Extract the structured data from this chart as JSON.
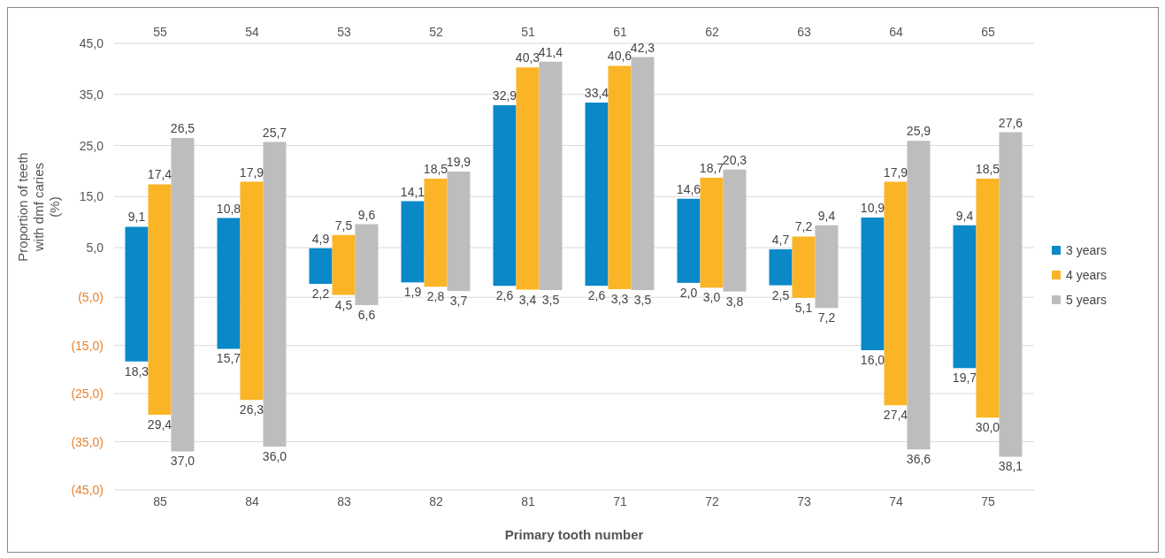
{
  "chart_data": [
    {
      "type": "bar",
      "ylabel": "Proportion of teeth\nwith dmf caries\n(%)",
      "categories": [
        "55",
        "54",
        "53",
        "52",
        "51",
        "61",
        "62",
        "63",
        "64",
        "65"
      ],
      "ylim": [
        0,
        45
      ],
      "yticks": [
        {
          "value": 5,
          "label": "5,0"
        },
        {
          "value": 15,
          "label": "15,0"
        },
        {
          "value": 25,
          "label": "25,0"
        },
        {
          "value": 35,
          "label": "35,0"
        },
        {
          "value": 45,
          "label": "45,0"
        }
      ],
      "grid": "y",
      "legend": "bottom right",
      "series": [
        {
          "name": "3 years",
          "color": "#0a88c8",
          "values": [
            9.1,
            10.8,
            4.9,
            14.1,
            32.9,
            33.4,
            14.6,
            4.7,
            10.9,
            9.4
          ],
          "value_labels": [
            "9,1",
            "10,8",
            "4,9",
            "14,1",
            "32,9",
            "33,4",
            "14,6",
            "4,7",
            "10,9",
            "9,4"
          ]
        },
        {
          "name": "4 years",
          "color": "#fbb425",
          "values": [
            17.4,
            17.9,
            7.5,
            18.5,
            40.3,
            40.6,
            18.7,
            7.2,
            17.9,
            18.5
          ],
          "value_labels": [
            "17,4",
            "17,9",
            "7,5",
            "18,5",
            "40,3",
            "40,6",
            "18,7",
            "7,2",
            "17,9",
            "18,5"
          ]
        },
        {
          "name": "5 years",
          "color": "#bdbdbd",
          "values": [
            26.5,
            25.7,
            9.6,
            19.9,
            41.4,
            42.3,
            20.3,
            9.4,
            25.9,
            27.6
          ],
          "value_labels": [
            "26,5",
            "25,7",
            "9,6",
            "19,9",
            "41,4",
            "42,3",
            "20,3",
            "9,4",
            "25,9",
            "27,6"
          ]
        }
      ]
    },
    {
      "type": "bar",
      "xlabel": "Primary tooth number",
      "categories": [
        "85",
        "84",
        "83",
        "82",
        "81",
        "71",
        "72",
        "73",
        "74",
        "75"
      ],
      "ylim": [
        45,
        0
      ],
      "yticks": [
        {
          "value": 5,
          "label": "(5,0)"
        },
        {
          "value": 15,
          "label": "(15,0)"
        },
        {
          "value": 25,
          "label": "(25,0)"
        },
        {
          "value": 35,
          "label": "(35,0)"
        },
        {
          "value": 45,
          "label": "(45,0)"
        }
      ],
      "grid": "y",
      "series": [
        {
          "color": "#0a88c8",
          "values": [
            18.3,
            15.7,
            2.2,
            1.9,
            2.6,
            2.6,
            2.0,
            2.5,
            16.0,
            19.7
          ],
          "value_labels": [
            "18,3",
            "15,7",
            "2,2",
            "1,9",
            "2,6",
            "2,6",
            "2,0",
            "2,5",
            "16,0",
            "19,7"
          ]
        },
        {
          "color": "#fbb425",
          "values": [
            29.4,
            26.3,
            4.5,
            2.8,
            3.4,
            3.3,
            3.0,
            5.1,
            27.4,
            30.0
          ],
          "value_labels": [
            "29,4",
            "26,3",
            "4,5",
            "2,8",
            "3,4",
            "3,3",
            "3,0",
            "5,1",
            "27,4",
            "30,0"
          ]
        },
        {
          "color": "#bdbdbd",
          "values": [
            37.0,
            36.0,
            6.6,
            3.7,
            3.5,
            3.5,
            3.8,
            7.2,
            36.6,
            38.1
          ],
          "value_labels": [
            "37,0",
            "36,0",
            "6,6",
            "3,7",
            "3,5",
            "3,5",
            "3,8",
            "7,2",
            "36,6",
            "38,1"
          ]
        }
      ]
    }
  ]
}
